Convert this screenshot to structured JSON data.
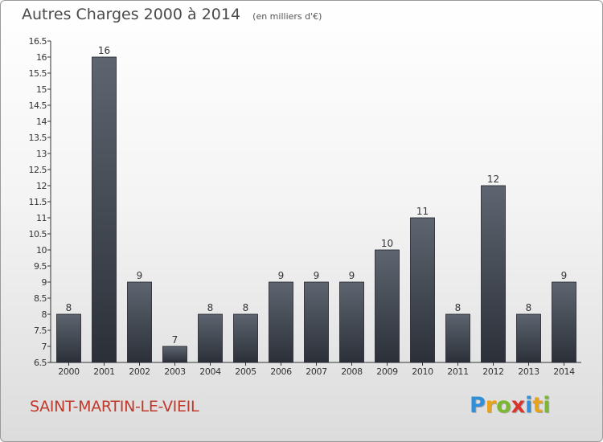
{
  "chart_data": {
    "type": "bar",
    "title": "Autres Charges 2000 à 2014",
    "unit": "(en milliers d'€)",
    "categories": [
      "2000",
      "2001",
      "2002",
      "2003",
      "2004",
      "2005",
      "2006",
      "2007",
      "2008",
      "2009",
      "2010",
      "2011",
      "2012",
      "2013",
      "2014"
    ],
    "values": [
      8,
      16,
      9,
      7,
      8,
      8,
      9,
      9,
      9,
      10,
      11,
      8,
      12,
      8,
      9
    ],
    "ylim": [
      6.5,
      16.5
    ],
    "yticks": [
      6.5,
      7,
      7.5,
      8,
      8.5,
      9,
      9.5,
      10,
      10.5,
      11,
      11.5,
      12,
      12.5,
      13,
      13.5,
      14,
      14.5,
      15,
      15.5,
      16,
      16.5
    ],
    "grid": false,
    "legend": "none",
    "bar_color": "#3a4048"
  },
  "footer": {
    "town": "SAINT-MARTIN-LE-VIEIL",
    "brand_letters": [
      {
        "ch": "P",
        "color": "#2f8fd8"
      },
      {
        "ch": "r",
        "color": "#e8a21c"
      },
      {
        "ch": "o",
        "color": "#7cb82f"
      },
      {
        "ch": "x",
        "color": "#d8342c"
      },
      {
        "ch": "i",
        "color": "#2f8fd8"
      },
      {
        "ch": "t",
        "color": "#e8a21c"
      },
      {
        "ch": "i",
        "color": "#7cb82f"
      }
    ]
  }
}
